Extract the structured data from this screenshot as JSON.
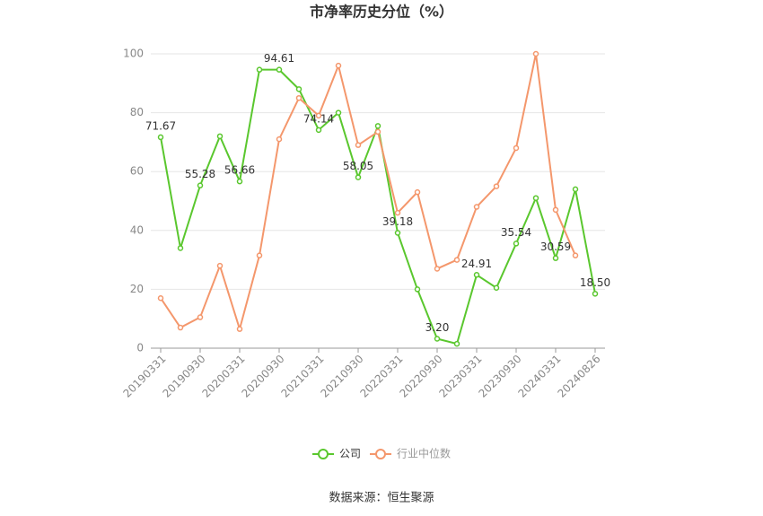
{
  "chart_data": {
    "type": "line",
    "title": "市净率历史分位（%）",
    "categories": [
      "20190331",
      null,
      "20190930",
      null,
      "20200331",
      null,
      "20200930",
      null,
      "20210331",
      null,
      "20210930",
      null,
      "20220331",
      null,
      "20220930",
      null,
      "20230331",
      null,
      "20230930",
      null,
      "20240331",
      null,
      "20240826"
    ],
    "series": [
      {
        "name": "公司",
        "color": "#5ac72e",
        "values": [
          71.67,
          34,
          55.28,
          72,
          56.66,
          94.61,
          94.61,
          88,
          74.14,
          80,
          58.05,
          75.5,
          39.18,
          20,
          3.2,
          1.5,
          24.91,
          20.5,
          35.54,
          51,
          30.59,
          54,
          18.5
        ],
        "value_labels": [
          "71.67",
          null,
          "55.28",
          null,
          "56.66",
          null,
          "94.61",
          null,
          "74.14",
          null,
          "58.05",
          null,
          "39.18",
          null,
          "3.20",
          null,
          "24.91",
          null,
          "35.54",
          null,
          "30.59",
          null,
          "18.50"
        ]
      },
      {
        "name": "行业中位数",
        "color": "#f4976c",
        "values": [
          17,
          7,
          10.5,
          28,
          6.5,
          31.5,
          71,
          85,
          79,
          96,
          69,
          73.5,
          46,
          53,
          27,
          30,
          48,
          55,
          68,
          100,
          47,
          31.5,
          null
        ]
      }
    ],
    "ylim": [
      0,
      100
    ],
    "yticks": [
      0,
      20,
      40,
      60,
      80,
      100
    ],
    "grid": true,
    "source": "数据来源：恒生聚源"
  }
}
